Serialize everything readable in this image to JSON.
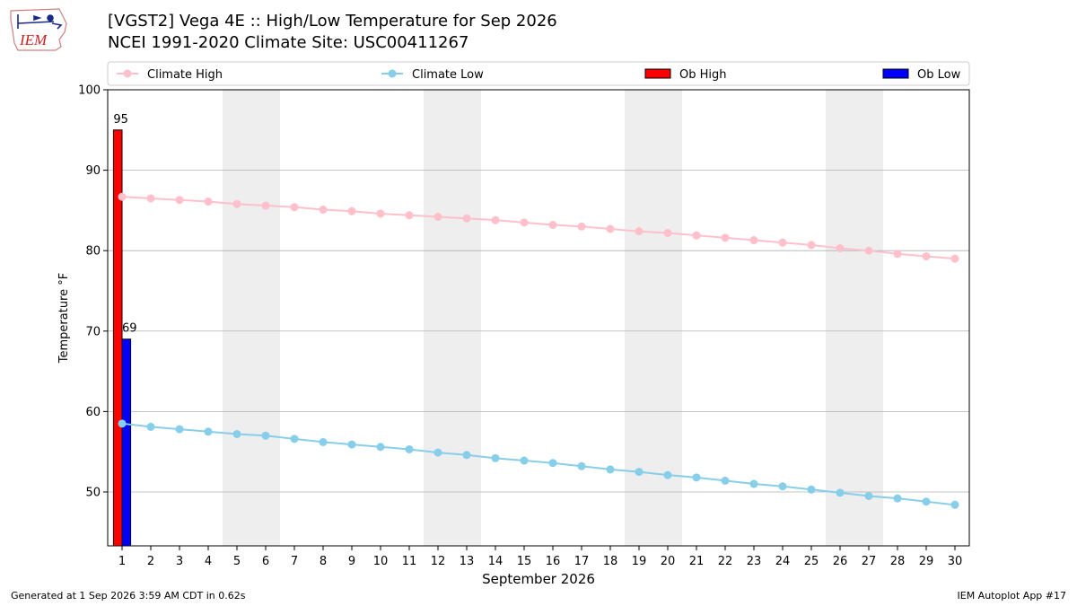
{
  "header": {
    "logo_text": "IEM",
    "title_line1": "[VGST2] Vega 4E :: High/Low Temperature for Sep 2026",
    "title_line2": "NCEI 1991-2020 Climate Site: USC00411267"
  },
  "footer": {
    "generated": "Generated at 1 Sep 2026 3:59 AM CDT in 0.62s",
    "app": "IEM Autoplot App #17"
  },
  "colors": {
    "climate_high": "#ffc0cb",
    "climate_low": "#87ceeb",
    "ob_high": "#ff0000",
    "ob_low": "#0000ff",
    "weekend_shade": "#eeeeee",
    "grid": "#b0b0b0"
  },
  "chart_data": {
    "type": "bar+line",
    "title": "[VGST2] Vega 4E :: High/Low Temperature for Sep 2026",
    "xlabel": "September 2026",
    "ylabel": "Temperature °F",
    "x": [
      1,
      2,
      3,
      4,
      5,
      6,
      7,
      8,
      9,
      10,
      11,
      12,
      13,
      14,
      15,
      16,
      17,
      18,
      19,
      20,
      21,
      22,
      23,
      24,
      25,
      26,
      27,
      28,
      29,
      30
    ],
    "xlim": [
      0.5,
      30.5
    ],
    "ylim": [
      43.3,
      100
    ],
    "yticks": [
      50,
      60,
      70,
      80,
      90,
      100
    ],
    "legend_position": "top",
    "grid": "horizontal",
    "shaded_day_ranges": [
      [
        5,
        6
      ],
      [
        12,
        13
      ],
      [
        19,
        20
      ],
      [
        26,
        27
      ]
    ],
    "series": [
      {
        "name": "Climate High",
        "kind": "line",
        "values": [
          86.7,
          86.5,
          86.3,
          86.1,
          85.8,
          85.6,
          85.4,
          85.1,
          84.9,
          84.6,
          84.4,
          84.2,
          84.0,
          83.8,
          83.5,
          83.2,
          83.0,
          82.7,
          82.4,
          82.2,
          81.9,
          81.6,
          81.3,
          81.0,
          80.7,
          80.3,
          80.0,
          79.6,
          79.3,
          79.0
        ]
      },
      {
        "name": "Climate Low",
        "kind": "line",
        "values": [
          58.5,
          58.1,
          57.8,
          57.5,
          57.2,
          57.0,
          56.6,
          56.2,
          55.9,
          55.6,
          55.3,
          54.9,
          54.6,
          54.2,
          53.9,
          53.6,
          53.2,
          52.8,
          52.5,
          52.1,
          51.8,
          51.4,
          51.0,
          50.7,
          50.3,
          49.9,
          49.5,
          49.2,
          48.8,
          48.4
        ]
      },
      {
        "name": "Ob High",
        "kind": "bar",
        "x": [
          1
        ],
        "values": [
          95
        ],
        "labels": [
          "95"
        ]
      },
      {
        "name": "Ob Low",
        "kind": "bar",
        "x": [
          1
        ],
        "values": [
          69
        ],
        "labels": [
          "69"
        ]
      }
    ]
  }
}
